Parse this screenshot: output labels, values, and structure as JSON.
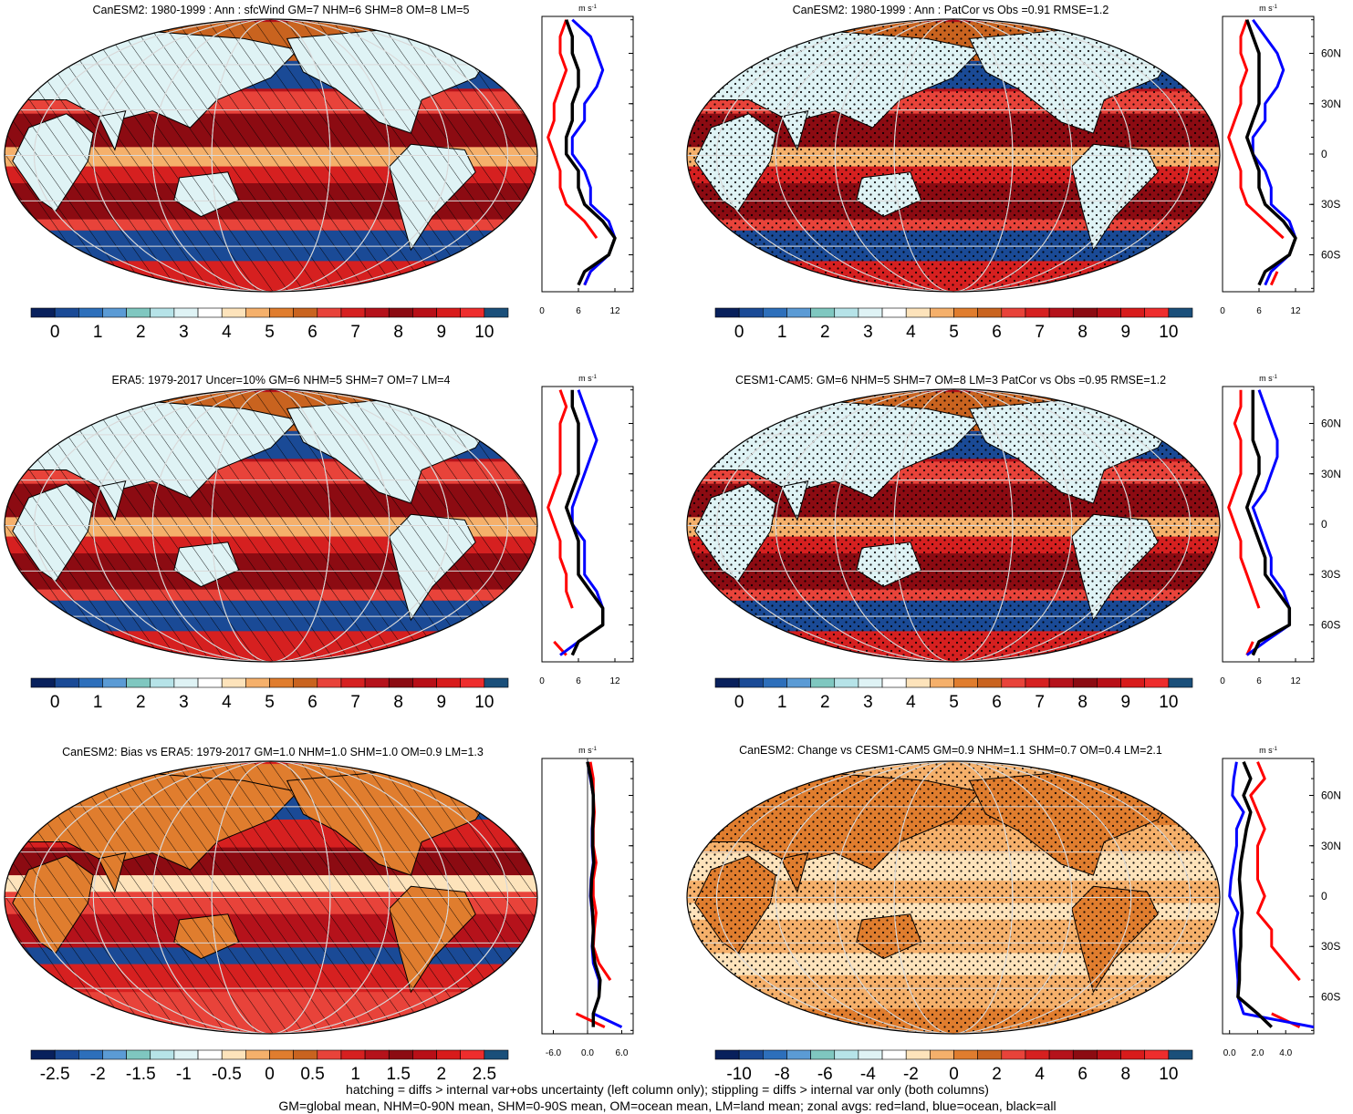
{
  "colors": {
    "palette": [
      "#08205c",
      "#1a4a96",
      "#2d6fbb",
      "#5b9bd5",
      "#7fc7c0",
      "#b6e3e8",
      "#dff3f5",
      "#ffffff",
      "#fde3bb",
      "#f5b06b",
      "#e07d2e",
      "#c9631f",
      "#e8433a",
      "#d62020",
      "#b5121b",
      "#8c0b12",
      "#b80f17",
      "#d81b1b",
      "#ee2d2d",
      "#1a4f7a"
    ],
    "land_line": "#000000",
    "grid": "#d9d9d9",
    "land_curve": "#ff0000",
    "ocean_curve": "#0000ff",
    "all_curve": "#000000"
  },
  "panels": [
    {
      "id": "p1",
      "title": "CanESM2: 1980-1999 : Ann : sfcWind GM=7 NHM=6 SHM=8 OM=8 LM=5",
      "hatch": true,
      "stipple": false,
      "scheme": "wind"
    },
    {
      "id": "p2",
      "title": "CanESM2: 1980-1999 : Ann : PatCor vs Obs =0.91 RMSE=1.2",
      "hatch": false,
      "stipple": true,
      "scheme": "wind"
    },
    {
      "id": "p3",
      "title": "ERA5: 1979-2017 Uncer=10% GM=6 NHM=5 SHM=7 OM=7 LM=4",
      "hatch": true,
      "stipple": false,
      "scheme": "wind"
    },
    {
      "id": "p4",
      "title": "CESM1-CAM5: GM=6 NHM=5 SHM=7 OM=8 LM=3 PatCor vs Obs =0.95 RMSE=1.2",
      "hatch": false,
      "stipple": true,
      "scheme": "wind"
    },
    {
      "id": "p5",
      "title": "CanESM2: Bias vs ERA5: 1979-2017 GM=1.0 NHM=1.0 SHM=1.0 OM=0.9 LM=1.3",
      "hatch": true,
      "stipple": false,
      "scheme": "bias"
    },
    {
      "id": "p6",
      "title": "CanESM2: Change vs CESM1-CAM5 GM=0.9 NHM=1.1 SHM=0.7 OM=0.4 LM=2.1",
      "hatch": false,
      "stipple": true,
      "scheme": "change"
    }
  ],
  "colorbars": [
    {
      "ticks": [
        "0",
        "1",
        "2",
        "3",
        "4",
        "5",
        "6",
        "7",
        "8",
        "9",
        "10"
      ]
    },
    {
      "ticks": [
        "0",
        "1",
        "2",
        "3",
        "4",
        "5",
        "6",
        "7",
        "8",
        "9",
        "10"
      ]
    },
    {
      "ticks": [
        "0",
        "1",
        "2",
        "3",
        "4",
        "5",
        "6",
        "7",
        "8",
        "9",
        "10"
      ]
    },
    {
      "ticks": [
        "0",
        "1",
        "2",
        "3",
        "4",
        "5",
        "6",
        "7",
        "8",
        "9",
        "10"
      ]
    },
    {
      "ticks": [
        "-2.5",
        "-2",
        "-1.5",
        "-1",
        "-0.5",
        "0",
        "0.5",
        "1",
        "1.5",
        "2",
        "2.5"
      ]
    },
    {
      "ticks": [
        "-10",
        "-8",
        "-6",
        "-4",
        "-2",
        "0",
        "2",
        "4",
        "6",
        "8",
        "10"
      ]
    }
  ],
  "chart_data": [
    {
      "type": "line",
      "panel": "p1 zonal",
      "unit": "m s-1",
      "xlim": [
        0,
        15
      ],
      "x_ticks": [
        "0",
        "6",
        "12"
      ],
      "lat_ticks": [
        "60N",
        "30N",
        "0",
        "30S",
        "60S"
      ],
      "lat": [
        80,
        70,
        60,
        50,
        40,
        30,
        20,
        10,
        0,
        -10,
        -20,
        -30,
        -40,
        -50,
        -60,
        -70,
        -78
      ],
      "series": [
        {
          "name": "land",
          "values": [
            4,
            3,
            3,
            4,
            3,
            2,
            2,
            1,
            2,
            3,
            3,
            4,
            7,
            9,
            null,
            8,
            7
          ]
        },
        {
          "name": "ocean",
          "values": [
            5,
            8,
            9,
            10,
            9,
            7,
            7,
            5,
            5,
            7,
            8,
            8,
            11,
            12,
            11,
            8,
            7
          ]
        },
        {
          "name": "all",
          "values": [
            4,
            5,
            5,
            6,
            6,
            5,
            5,
            4,
            4,
            6,
            6,
            7,
            10,
            12,
            11,
            7,
            6
          ]
        }
      ]
    },
    {
      "type": "line",
      "panel": "p2 zonal",
      "unit": "m s-1",
      "xlim": [
        0,
        15
      ],
      "x_ticks": [
        "0",
        "6",
        "12"
      ],
      "lat_ticks": [
        "60N",
        "30N",
        "0",
        "30S",
        "60S"
      ],
      "lat": [
        80,
        70,
        60,
        50,
        40,
        30,
        20,
        10,
        0,
        -10,
        -20,
        -30,
        -40,
        -50,
        -60,
        -70,
        -78
      ],
      "series": [
        {
          "name": "land",
          "values": [
            4,
            3,
            3,
            4,
            3,
            3,
            2,
            1,
            2,
            3,
            3,
            4,
            7,
            10,
            null,
            9,
            8
          ]
        },
        {
          "name": "ocean",
          "values": [
            5,
            7,
            9,
            10,
            9,
            7,
            7,
            5,
            5,
            7,
            8,
            8,
            11,
            12,
            11,
            8,
            7
          ]
        },
        {
          "name": "all",
          "values": [
            4,
            5,
            6,
            6,
            6,
            6,
            5,
            4,
            5,
            6,
            6,
            7,
            10,
            12,
            11,
            7,
            6
          ]
        }
      ]
    },
    {
      "type": "line",
      "panel": "p3 zonal",
      "unit": "m s-1",
      "xlim": [
        0,
        15
      ],
      "x_ticks": [
        "0",
        "6",
        "12"
      ],
      "lat_ticks": [
        "60N",
        "30N",
        "0",
        "30S",
        "60S"
      ],
      "lat": [
        80,
        70,
        60,
        50,
        40,
        30,
        20,
        10,
        0,
        -10,
        -20,
        -30,
        -40,
        -50,
        -60,
        -70,
        -78
      ],
      "series": [
        {
          "name": "land",
          "values": [
            3,
            4,
            3,
            3,
            3,
            3,
            2,
            1,
            2,
            3,
            3,
            4,
            4,
            5,
            null,
            2,
            4
          ]
        },
        {
          "name": "ocean",
          "values": [
            6,
            7,
            8,
            9,
            8,
            7,
            6,
            5,
            5,
            7,
            7,
            7,
            9,
            10,
            10,
            6,
            3
          ]
        },
        {
          "name": "all",
          "values": [
            5,
            5,
            6,
            6,
            6,
            6,
            5,
            4,
            5,
            6,
            6,
            6,
            8,
            10,
            10,
            6,
            5
          ]
        }
      ]
    },
    {
      "type": "line",
      "panel": "p4 zonal",
      "unit": "m s-1",
      "xlim": [
        0,
        15
      ],
      "x_ticks": [
        "0",
        "6",
        "12"
      ],
      "lat_ticks": [
        "60N",
        "30N",
        "0",
        "30S",
        "60S"
      ],
      "lat": [
        80,
        70,
        60,
        50,
        40,
        30,
        20,
        10,
        0,
        -10,
        -20,
        -30,
        -40,
        -50,
        -60,
        -70,
        -78
      ],
      "series": [
        {
          "name": "land",
          "values": [
            3,
            3,
            2,
            3,
            3,
            3,
            2,
            1,
            2,
            3,
            3,
            4,
            5,
            6,
            null,
            5,
            4
          ]
        },
        {
          "name": "ocean",
          "values": [
            6,
            7,
            8,
            9,
            9,
            8,
            7,
            5,
            6,
            7,
            8,
            8,
            10,
            11,
            11,
            7,
            4
          ]
        },
        {
          "name": "all",
          "values": [
            5,
            5,
            5,
            5,
            6,
            6,
            5,
            4,
            5,
            6,
            7,
            7,
            9,
            11,
            11,
            6,
            5
          ]
        }
      ]
    },
    {
      "type": "line",
      "panel": "p5 zonal",
      "unit": "m s-1",
      "xlim": [
        -8,
        8
      ],
      "x_ticks": [
        "-6.0",
        "0.0",
        "6.0"
      ],
      "lat_ticks": [
        "60N",
        "30N",
        "0",
        "30S",
        "60S"
      ],
      "lat": [
        80,
        70,
        60,
        50,
        40,
        30,
        20,
        10,
        0,
        -10,
        -20,
        -30,
        -40,
        -50,
        -60,
        -70,
        -78
      ],
      "series": [
        {
          "name": "land",
          "values": [
            0.5,
            1,
            1,
            1.2,
            1,
            1,
            1.5,
            1,
            1,
            1.5,
            1.2,
            1,
            2,
            4,
            null,
            -2,
            3
          ]
        },
        {
          "name": "ocean",
          "values": [
            0,
            0.5,
            1,
            1,
            0.8,
            0.8,
            1,
            0.6,
            0.5,
            0.8,
            1,
            0.8,
            1,
            2,
            2,
            1,
            6
          ]
        },
        {
          "name": "all",
          "values": [
            0,
            0.6,
            1,
            1,
            0.9,
            0.9,
            1.1,
            0.7,
            0.6,
            0.9,
            1,
            0.9,
            1.3,
            2.2,
            2,
            1,
            1
          ]
        }
      ]
    },
    {
      "type": "line",
      "panel": "p6 zonal",
      "unit": "m s-1",
      "xlim": [
        -0.5,
        6
      ],
      "x_ticks": [
        "0.0",
        "2.0",
        "4.0"
      ],
      "lat_ticks": [
        "60N",
        "30N",
        "0",
        "30S",
        "60S"
      ],
      "lat": [
        80,
        70,
        60,
        50,
        40,
        30,
        20,
        10,
        0,
        -10,
        -20,
        -30,
        -40,
        -50,
        -60,
        -70,
        -78
      ],
      "series": [
        {
          "name": "land",
          "values": [
            2,
            2.5,
            1.5,
            2,
            2.5,
            2,
            2,
            2,
            2.5,
            2,
            3,
            3,
            4,
            5,
            null,
            3,
            5
          ]
        },
        {
          "name": "ocean",
          "values": [
            0.5,
            0.3,
            0.2,
            1,
            0.5,
            0.5,
            0.3,
            0.1,
            0,
            0.6,
            0.3,
            0.4,
            0.5,
            0.6,
            0.6,
            1,
            6
          ]
        },
        {
          "name": "all",
          "values": [
            1,
            1.5,
            1,
            1.5,
            1.2,
            1,
            0.8,
            0.7,
            0.8,
            0.9,
            0.8,
            0.8,
            0.7,
            0.7,
            0.6,
            2,
            3
          ]
        }
      ]
    }
  ],
  "footer": {
    "line1": "hatching = diffs > internal var+obs uncertainty (left column only); stippling = diffs > internal var only (both columns)",
    "line2": "GM=global mean, NHM=0-90N mean, SHM=0-90S mean, OM=ocean mean, LM=land mean; zonal avgs: red=land, blue=ocean, black=all"
  }
}
